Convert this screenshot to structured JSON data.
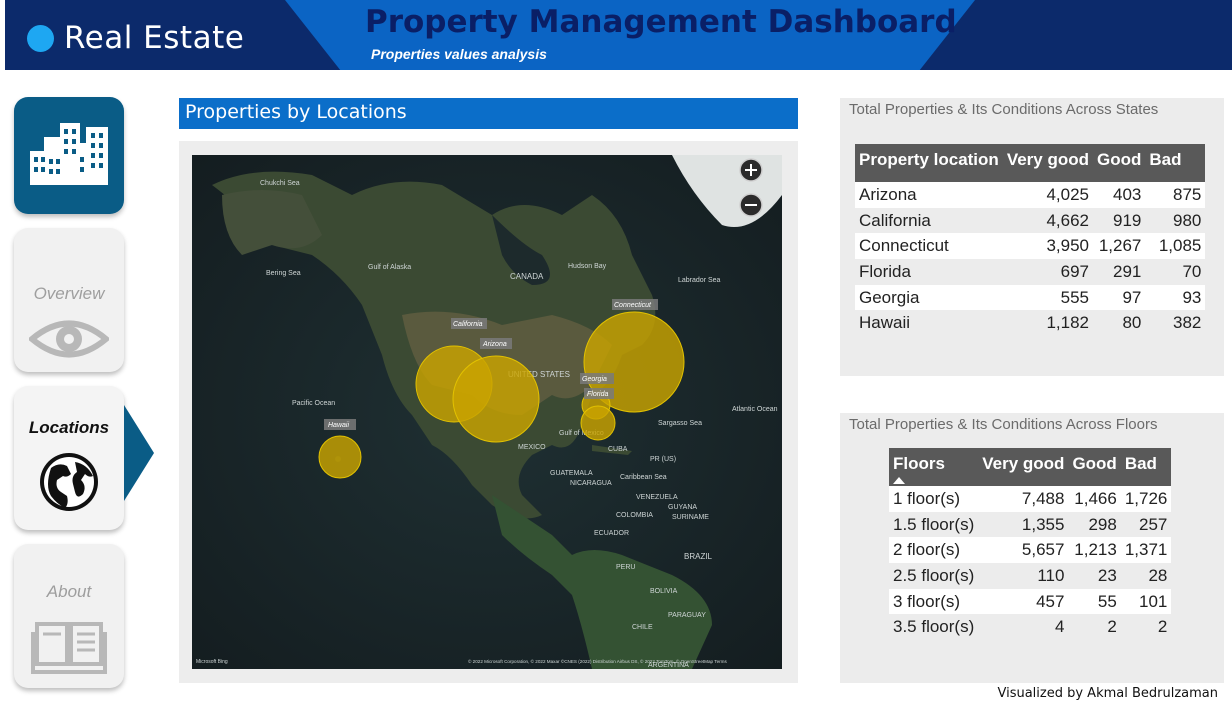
{
  "header": {
    "brand": "Real Estate",
    "title": "Property Management Dashboard",
    "subtitle": "Properties values analysis",
    "colors": {
      "dark": "#0c2a6b",
      "band": "#0b64c4",
      "accent": "#1ea7f2"
    }
  },
  "nav": {
    "home_icon": "buildings-icon",
    "items": [
      {
        "label": "Overview",
        "icon": "eye-icon",
        "active": false
      },
      {
        "label": "Locations",
        "icon": "globe-icon",
        "active": true
      },
      {
        "label": "About",
        "icon": "book-icon",
        "active": false
      }
    ]
  },
  "map_section": {
    "title": "Properties by Locations",
    "labels": {
      "chukchi": "Chukchi Sea",
      "bering": "Bering Sea",
      "alaska": "Gulf of Alaska",
      "canada": "CANADA",
      "hudson": "Hudson Bay",
      "labrador": "Labrador Sea",
      "us": "UNITED STATES",
      "pacific": "Pacific Ocean",
      "atlantic": "Atlantic Ocean",
      "sargasso": "Sargasso Sea",
      "gulf_mexico": "Gulf of Mexico",
      "mexico": "MEXICO",
      "cuba": "CUBA",
      "pr": "PR (US)",
      "caribbean": "Caribbean Sea",
      "guatemala": "GUATEMALA",
      "nicaragua": "NICARAGUA",
      "venezuela": "VENEZUELA",
      "guyana": "GUYANA",
      "suriname": "SURINAME",
      "colombia": "COLOMBIA",
      "ecuador": "ECUADOR",
      "peru": "PERU",
      "brazil": "BRAZIL",
      "bolivia": "BOLIVIA",
      "paraguay": "PARAGUAY",
      "chile": "CHILE",
      "argentina": "ARGENTINA"
    },
    "bubbles": [
      {
        "name": "California"
      },
      {
        "name": "Arizona"
      },
      {
        "name": "Connecticut"
      },
      {
        "name": "Georgia"
      },
      {
        "name": "Florida"
      },
      {
        "name": "Hawaii"
      }
    ],
    "attribution": "© 2022 Microsoft Corporation, © 2022 Maxar ©CNES (2022) Distribution Airbus DS, © 2022 TomTom, © OpenStreetMap Terms",
    "bing": "Microsoft Bing"
  },
  "states_table": {
    "title": "Total Properties & Its Conditions Across States",
    "headers": [
      "Property location",
      "Very good",
      "Good",
      "Bad"
    ],
    "rows": [
      [
        "Arizona",
        "4,025",
        "403",
        "875"
      ],
      [
        "California",
        "4,662",
        "919",
        "980"
      ],
      [
        "Connecticut",
        "3,950",
        "1,267",
        "1,085"
      ],
      [
        "Florida",
        "697",
        "291",
        "70"
      ],
      [
        "Georgia",
        "555",
        "97",
        "93"
      ],
      [
        "Hawaii",
        "1,182",
        "80",
        "382"
      ]
    ]
  },
  "floors_table": {
    "title": "Total Properties & Its Conditions Across Floors",
    "headers": [
      "Floors",
      "Very good",
      "Good",
      "Bad"
    ],
    "rows": [
      [
        "1 floor(s)",
        "7,488",
        "1,466",
        "1,726"
      ],
      [
        "1.5 floor(s)",
        "1,355",
        "298",
        "257"
      ],
      [
        "2 floor(s)",
        "5,657",
        "1,213",
        "1,371"
      ],
      [
        "2.5 floor(s)",
        "110",
        "23",
        "28"
      ],
      [
        "3 floor(s)",
        "457",
        "55",
        "101"
      ],
      [
        "3.5 floor(s)",
        "4",
        "2",
        "2"
      ]
    ]
  },
  "credit": "Visualized by Akmal Bedrulzaman"
}
